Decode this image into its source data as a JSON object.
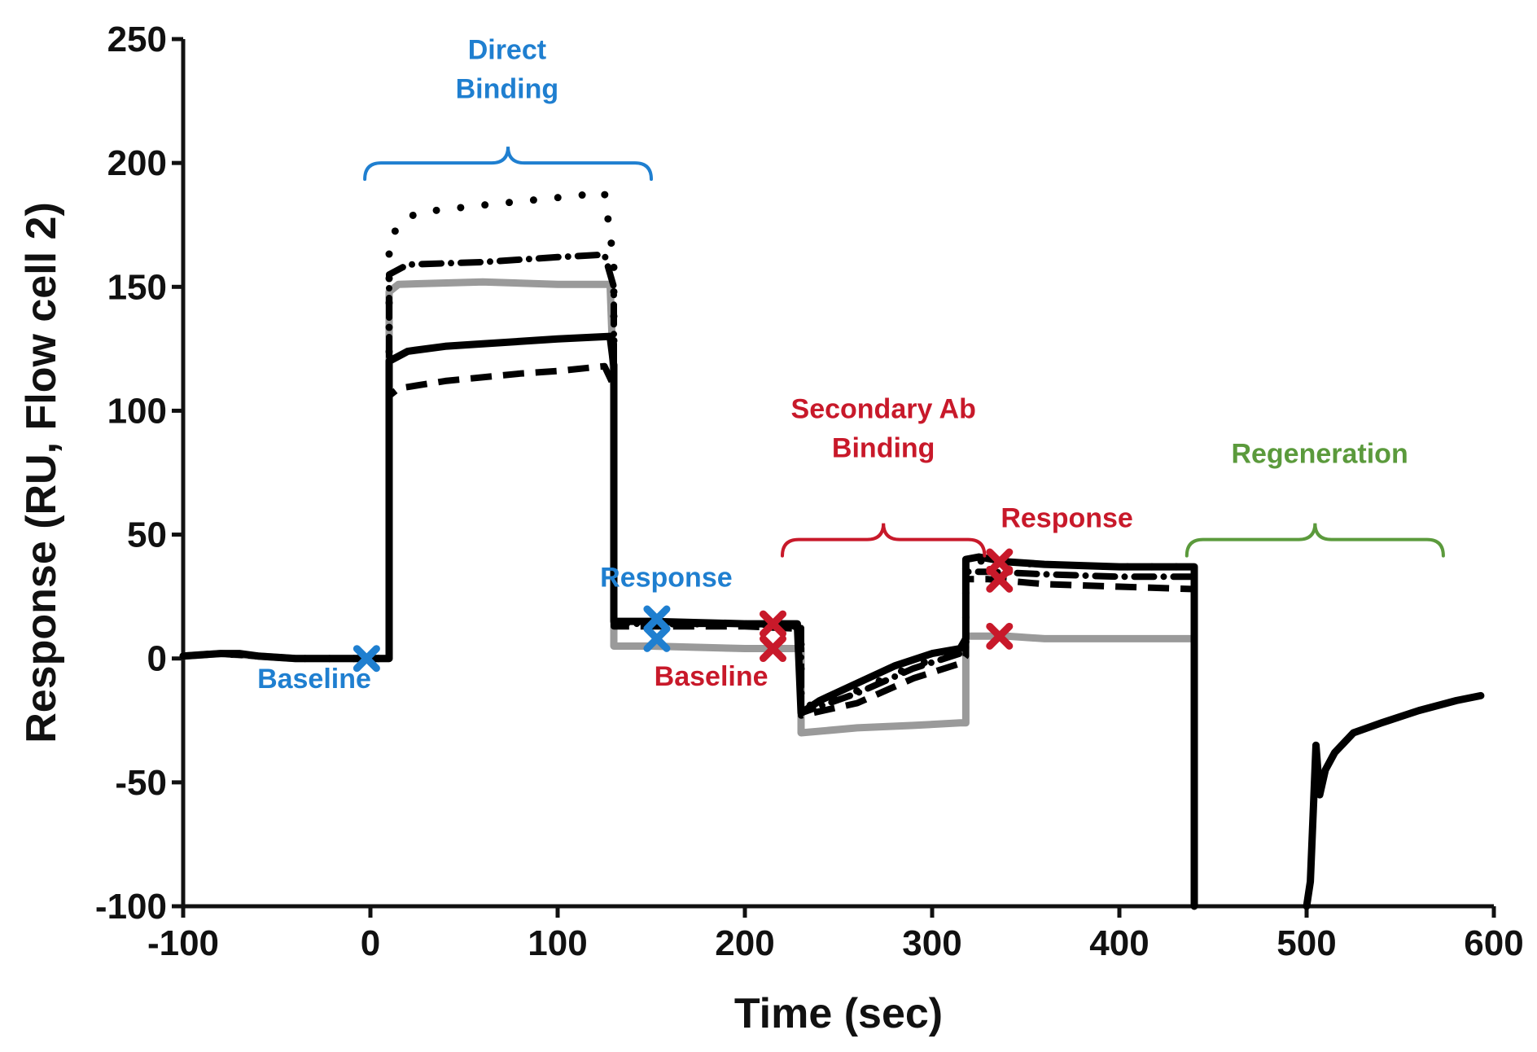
{
  "chart_data": {
    "type": "line",
    "xlabel": "Time (sec)",
    "ylabel": "Response (RU,  Flow cell 2)",
    "xlim": [
      -100,
      600
    ],
    "ylim": [
      -100,
      250
    ],
    "xticks": [
      -100,
      0,
      100,
      200,
      300,
      400,
      500,
      600
    ],
    "yticks": [
      -100,
      -50,
      0,
      50,
      100,
      150,
      200,
      250
    ],
    "xtick_labels": [
      "-100",
      "0",
      "100",
      "200",
      "300",
      "400",
      "500",
      "600"
    ],
    "ytick_labels": [
      "-100",
      "-50",
      "0",
      "50",
      "100",
      "150",
      "200",
      "250"
    ],
    "grid": false,
    "colors": {
      "axis": "#111111",
      "blue": "#1f7fd0",
      "red": "#c8192a",
      "green": "#5b9a3c",
      "gray": "#9a9a9a",
      "black": "#000000"
    },
    "series": [
      {
        "name": "dotted",
        "style": "dotted",
        "color": "#000000",
        "points": [
          [
            -100,
            1
          ],
          [
            -80,
            2
          ],
          [
            -60,
            1
          ],
          [
            -40,
            0
          ],
          [
            -20,
            0
          ],
          [
            0,
            0
          ],
          [
            10,
            0
          ],
          [
            10,
            168
          ],
          [
            15,
            175
          ],
          [
            25,
            180
          ],
          [
            60,
            183
          ],
          [
            100,
            186
          ],
          [
            125,
            188
          ],
          [
            130,
            160
          ],
          [
            130,
            14
          ],
          [
            150,
            14
          ],
          [
            200,
            14
          ],
          [
            212,
            13
          ],
          [
            230,
            13
          ],
          [
            230,
            -20
          ],
          [
            260,
            -13
          ],
          [
            290,
            -3
          ],
          [
            315,
            3
          ],
          [
            318,
            6
          ],
          [
            318,
            40
          ],
          [
            330,
            39
          ],
          [
            360,
            38
          ],
          [
            400,
            37
          ],
          [
            440,
            37
          ],
          [
            440,
            -100
          ]
        ]
      },
      {
        "name": "dash-dot",
        "style": "dashdot",
        "color": "#000000",
        "points": [
          [
            -100,
            1
          ],
          [
            -80,
            2
          ],
          [
            -60,
            1
          ],
          [
            -40,
            0
          ],
          [
            0,
            0
          ],
          [
            10,
            0
          ],
          [
            10,
            155
          ],
          [
            20,
            159
          ],
          [
            60,
            160
          ],
          [
            100,
            162
          ],
          [
            125,
            163
          ],
          [
            130,
            150
          ],
          [
            130,
            14
          ],
          [
            200,
            14
          ],
          [
            230,
            13
          ],
          [
            230,
            -22
          ],
          [
            260,
            -14
          ],
          [
            290,
            -4
          ],
          [
            315,
            2
          ],
          [
            318,
            4
          ],
          [
            318,
            35
          ],
          [
            330,
            35
          ],
          [
            360,
            34
          ],
          [
            400,
            33
          ],
          [
            440,
            33
          ],
          [
            440,
            -100
          ]
        ]
      },
      {
        "name": "gray-solid",
        "style": "solid",
        "color": "#9a9a9a",
        "points": [
          [
            -100,
            1
          ],
          [
            -80,
            2
          ],
          [
            -60,
            1
          ],
          [
            -40,
            0
          ],
          [
            0,
            0
          ],
          [
            10,
            0
          ],
          [
            10,
            148
          ],
          [
            15,
            151
          ],
          [
            60,
            152
          ],
          [
            100,
            151
          ],
          [
            128,
            151
          ],
          [
            130,
            110
          ],
          [
            130,
            5
          ],
          [
            150,
            5
          ],
          [
            200,
            4
          ],
          [
            230,
            4
          ],
          [
            230,
            -30
          ],
          [
            260,
            -28
          ],
          [
            290,
            -27
          ],
          [
            315,
            -26
          ],
          [
            318,
            -26
          ],
          [
            318,
            9
          ],
          [
            340,
            9
          ],
          [
            360,
            8
          ],
          [
            400,
            8
          ],
          [
            440,
            8
          ]
        ]
      },
      {
        "name": "black-solid",
        "style": "solid",
        "color": "#000000",
        "points": [
          [
            -100,
            1
          ],
          [
            -80,
            2
          ],
          [
            -70,
            2
          ],
          [
            -60,
            1
          ],
          [
            -40,
            0
          ],
          [
            -20,
            0
          ],
          [
            0,
            0
          ],
          [
            10,
            0
          ],
          [
            10,
            120
          ],
          [
            20,
            124
          ],
          [
            40,
            126
          ],
          [
            60,
            127
          ],
          [
            100,
            129
          ],
          [
            128,
            130
          ],
          [
            130,
            118
          ],
          [
            130,
            15
          ],
          [
            150,
            15
          ],
          [
            200,
            14
          ],
          [
            228,
            14
          ],
          [
            230,
            -22
          ],
          [
            240,
            -17
          ],
          [
            260,
            -10
          ],
          [
            280,
            -3
          ],
          [
            300,
            2
          ],
          [
            315,
            4
          ],
          [
            318,
            8
          ],
          [
            318,
            40
          ],
          [
            325,
            41
          ],
          [
            340,
            39
          ],
          [
            360,
            38
          ],
          [
            400,
            37
          ],
          [
            440,
            37
          ],
          [
            440,
            -100
          ]
        ]
      },
      {
        "name": "dashed",
        "style": "dashed",
        "color": "#000000",
        "points": [
          [
            -100,
            1
          ],
          [
            -80,
            2
          ],
          [
            -60,
            1
          ],
          [
            -40,
            0
          ],
          [
            0,
            0
          ],
          [
            10,
            0
          ],
          [
            10,
            106
          ],
          [
            15,
            109
          ],
          [
            40,
            112
          ],
          [
            80,
            115
          ],
          [
            100,
            116
          ],
          [
            125,
            118
          ],
          [
            130,
            110
          ],
          [
            130,
            13
          ],
          [
            200,
            13
          ],
          [
            230,
            12
          ],
          [
            230,
            -23
          ],
          [
            260,
            -18
          ],
          [
            290,
            -8
          ],
          [
            315,
            -2
          ],
          [
            318,
            1
          ],
          [
            318,
            32
          ],
          [
            330,
            32
          ],
          [
            360,
            30
          ],
          [
            400,
            29
          ],
          [
            440,
            28
          ],
          [
            440,
            -100
          ]
        ]
      },
      {
        "name": "regeneration-recovery",
        "style": "solid",
        "color": "#000000",
        "points": [
          [
            500,
            -100
          ],
          [
            502,
            -90
          ],
          [
            505,
            -35
          ],
          [
            507,
            -55
          ],
          [
            510,
            -45
          ],
          [
            515,
            -38
          ],
          [
            525,
            -30
          ],
          [
            540,
            -26
          ],
          [
            560,
            -21
          ],
          [
            580,
            -17
          ],
          [
            593,
            -15
          ]
        ]
      }
    ],
    "markers": [
      {
        "x": -2,
        "y": 0,
        "color": "#1f7fd0"
      },
      {
        "x": 153,
        "y": 16,
        "color": "#1f7fd0"
      },
      {
        "x": 153,
        "y": 8,
        "color": "#1f7fd0"
      },
      {
        "x": 215,
        "y": 14,
        "color": "#c8192a"
      },
      {
        "x": 215,
        "y": 4,
        "color": "#c8192a"
      },
      {
        "x": 336,
        "y": 39,
        "color": "#c8192a"
      },
      {
        "x": 336,
        "y": 32,
        "color": "#c8192a"
      },
      {
        "x": 336,
        "y": 9,
        "color": "#c8192a"
      }
    ],
    "brackets": [
      {
        "name": "direct-binding",
        "x_start": -3,
        "x_end": 150,
        "y": 200,
        "color": "#1f7fd0"
      },
      {
        "name": "secondary-ab-binding",
        "x_start": 220,
        "x_end": 328,
        "y": 48,
        "color": "#c8192a"
      },
      {
        "name": "regeneration",
        "x_start": 436,
        "x_end": 573,
        "y": 48,
        "color": "#5b9a3c"
      }
    ],
    "annotations": [
      {
        "name": "direct-binding-label",
        "lines": [
          "Direct",
          "Binding"
        ],
        "x": 73,
        "y": 242,
        "color": "#1f7fd0"
      },
      {
        "name": "baseline-blue",
        "lines": [
          "Baseline"
        ],
        "x": -30,
        "y": -12,
        "color": "#1f7fd0"
      },
      {
        "name": "response-blue",
        "lines": [
          "Response"
        ],
        "x": 158,
        "y": 29,
        "color": "#1f7fd0"
      },
      {
        "name": "secondary-ab-label",
        "lines": [
          "Secondary Ab",
          "Binding"
        ],
        "x": 274,
        "y": 97,
        "color": "#c8192a"
      },
      {
        "name": "response-red",
        "lines": [
          "Response"
        ],
        "x": 372,
        "y": 53,
        "color": "#c8192a"
      },
      {
        "name": "baseline-red",
        "lines": [
          "Baseline"
        ],
        "x": 182,
        "y": -11,
        "color": "#c8192a"
      },
      {
        "name": "regeneration-label",
        "lines": [
          "Regeneration"
        ],
        "x": 507,
        "y": 79,
        "color": "#5b9a3c"
      }
    ]
  }
}
